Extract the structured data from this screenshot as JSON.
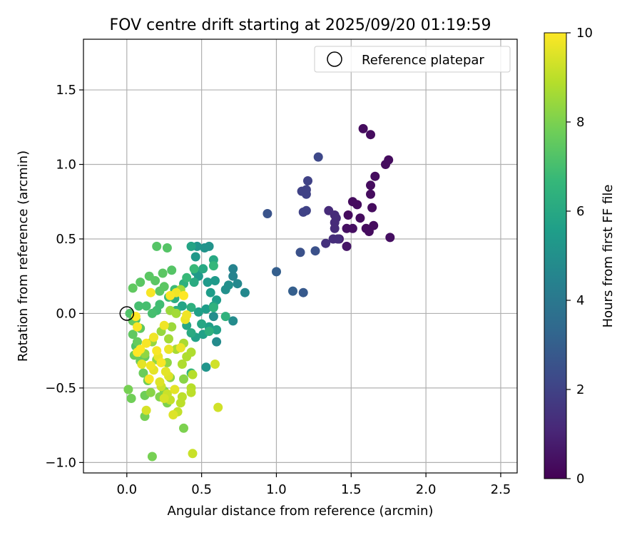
{
  "chart_data": {
    "type": "scatter",
    "title": "FOV centre drift starting at 2025/09/20 01:19:59",
    "xlabel": "Angular distance from reference (arcmin)",
    "ylabel": "Rotation from reference (arcmin)",
    "xlim": [
      -0.29,
      2.61
    ],
    "ylim": [
      -1.07,
      1.84
    ],
    "xticks": [
      0.0,
      0.5,
      1.0,
      1.5,
      2.0,
      2.5
    ],
    "xtick_labels": [
      "0.0",
      "0.5",
      "1.0",
      "1.5",
      "2.0",
      "2.5"
    ],
    "yticks": [
      -1.0,
      -0.5,
      0.0,
      0.5,
      1.0,
      1.5
    ],
    "ytick_labels": [
      "−1.0",
      "−0.5",
      "0.0",
      "0.5",
      "1.0",
      "1.5"
    ],
    "grid": true,
    "legend": {
      "location": "upper right",
      "entries": [
        "Reference platepar"
      ]
    },
    "reference_point": {
      "x": 0.0,
      "y": 0.0
    },
    "colorbar": {
      "label": "Hours from first FF file",
      "range": [
        0,
        10
      ],
      "ticks": [
        0,
        2,
        4,
        6,
        8,
        10
      ],
      "tick_labels": [
        "0",
        "2",
        "4",
        "6",
        "8",
        "10"
      ],
      "colormap": "viridis",
      "colormap_stops": [
        "#440154",
        "#482878",
        "#3e4989",
        "#31688e",
        "#26828e",
        "#1f9e89",
        "#35b779",
        "#6ece58",
        "#b5de2b",
        "#fde725"
      ]
    },
    "points": [
      [
        1.58,
        1.24,
        0.3
      ],
      [
        1.63,
        1.2,
        0.3
      ],
      [
        1.75,
        1.03,
        0.3
      ],
      [
        1.73,
        1.0,
        0.3
      ],
      [
        1.66,
        0.92,
        0.3
      ],
      [
        1.63,
        0.86,
        0.3
      ],
      [
        1.63,
        0.8,
        0.3
      ],
      [
        1.64,
        0.71,
        0.3
      ],
      [
        1.54,
        0.73,
        0.3
      ],
      [
        1.51,
        0.75,
        0.3
      ],
      [
        1.56,
        0.64,
        0.3
      ],
      [
        1.48,
        0.66,
        0.3
      ],
      [
        1.65,
        0.59,
        0.3
      ],
      [
        1.6,
        0.57,
        0.3
      ],
      [
        1.62,
        0.55,
        0.3
      ],
      [
        1.47,
        0.57,
        0.4
      ],
      [
        1.51,
        0.57,
        0.4
      ],
      [
        1.76,
        0.51,
        0.4
      ],
      [
        1.47,
        0.45,
        0.6
      ],
      [
        1.42,
        0.5,
        0.8
      ],
      [
        1.35,
        0.69,
        1.2
      ],
      [
        1.39,
        0.66,
        1.2
      ],
      [
        1.4,
        0.64,
        1.2
      ],
      [
        1.39,
        0.61,
        1.2
      ],
      [
        1.39,
        0.57,
        1.2
      ],
      [
        1.38,
        0.5,
        1.3
      ],
      [
        1.41,
        0.5,
        1.3
      ],
      [
        1.33,
        0.47,
        1.4
      ],
      [
        1.21,
        0.89,
        2.0
      ],
      [
        1.2,
        0.83,
        2.0
      ],
      [
        1.17,
        0.82,
        2.0
      ],
      [
        1.2,
        0.8,
        2.0
      ],
      [
        1.18,
        0.68,
        2.0
      ],
      [
        1.2,
        0.69,
        2.0
      ],
      [
        1.28,
        1.05,
        2.2
      ],
      [
        1.26,
        0.42,
        2.5
      ],
      [
        1.16,
        0.41,
        2.5
      ],
      [
        0.94,
        0.67,
        2.6
      ],
      [
        1.18,
        0.14,
        2.8
      ],
      [
        1.11,
        0.15,
        3.0
      ],
      [
        1.0,
        0.28,
        3.0
      ],
      [
        0.71,
        0.3,
        4.5
      ],
      [
        0.71,
        0.25,
        4.5
      ],
      [
        0.74,
        0.2,
        4.7
      ],
      [
        0.79,
        0.14,
        4.7
      ],
      [
        0.71,
        -0.05,
        4.8
      ],
      [
        0.6,
        -0.19,
        4.8
      ],
      [
        0.58,
        -0.02,
        4.9
      ],
      [
        0.66,
        0.16,
        5.0
      ],
      [
        0.68,
        0.19,
        5.0
      ],
      [
        0.55,
        0.45,
        5.1
      ],
      [
        0.52,
        0.44,
        5.1
      ],
      [
        0.53,
        -0.36,
        5.2
      ],
      [
        0.47,
        0.45,
        5.2
      ],
      [
        0.46,
        0.38,
        5.3
      ],
      [
        0.46,
        0.28,
        5.4
      ],
      [
        0.48,
        0.25,
        5.4
      ],
      [
        0.54,
        0.21,
        5.4
      ],
      [
        0.59,
        0.22,
        5.4
      ],
      [
        0.56,
        0.14,
        5.5
      ],
      [
        0.6,
        0.09,
        5.5
      ],
      [
        0.53,
        0.03,
        5.5
      ],
      [
        0.48,
        0.01,
        5.6
      ],
      [
        0.55,
        -0.09,
        5.6
      ],
      [
        0.46,
        -0.16,
        5.7
      ],
      [
        0.51,
        -0.14,
        5.7
      ],
      [
        0.6,
        -0.11,
        5.7
      ],
      [
        0.58,
        0.05,
        5.8
      ],
      [
        0.43,
        0.45,
        5.8
      ],
      [
        0.37,
        0.05,
        5.8
      ],
      [
        0.4,
        -0.08,
        5.9
      ],
      [
        0.5,
        -0.07,
        5.9
      ],
      [
        0.58,
        0.36,
        6.0
      ],
      [
        0.51,
        0.3,
        6.0
      ],
      [
        0.45,
        0.21,
        6.1
      ],
      [
        0.43,
        -0.13,
        6.1
      ],
      [
        0.33,
        0.02,
        6.2
      ],
      [
        0.32,
        0.1,
        6.2
      ],
      [
        0.38,
        0.2,
        6.3
      ],
      [
        0.43,
        0.04,
        6.3
      ],
      [
        0.55,
        -0.12,
        6.3
      ],
      [
        0.58,
        0.04,
        6.4
      ],
      [
        0.66,
        -0.02,
        6.4
      ],
      [
        0.43,
        -0.4,
        6.6
      ],
      [
        0.58,
        0.32,
        6.6
      ],
      [
        0.45,
        0.3,
        6.7
      ],
      [
        0.4,
        0.24,
        6.7
      ],
      [
        0.32,
        0.16,
        6.8
      ],
      [
        0.28,
        0.11,
        6.8
      ],
      [
        0.22,
        0.06,
        6.9
      ],
      [
        0.2,
        0.02,
        6.9
      ],
      [
        0.13,
        0.05,
        7.0
      ],
      [
        0.17,
        0.0,
        7.0
      ],
      [
        0.08,
        0.05,
        7.0
      ],
      [
        0.06,
        -0.04,
        7.1
      ],
      [
        0.02,
        0.0,
        7.2
      ],
      [
        0.06,
        -0.22,
        7.2
      ],
      [
        0.27,
        0.44,
        7.3
      ],
      [
        0.2,
        0.45,
        7.3
      ],
      [
        0.3,
        0.29,
        7.3
      ],
      [
        0.24,
        0.27,
        7.4
      ],
      [
        0.09,
        0.21,
        7.4
      ],
      [
        0.15,
        0.25,
        7.4
      ],
      [
        0.19,
        0.22,
        7.4
      ],
      [
        0.22,
        0.15,
        7.4
      ],
      [
        0.25,
        0.18,
        7.4
      ],
      [
        0.04,
        0.17,
        7.5
      ],
      [
        0.04,
        -0.14,
        7.5
      ],
      [
        0.09,
        -0.1,
        7.5
      ],
      [
        0.04,
        -0.05,
        7.6
      ],
      [
        0.07,
        -0.19,
        7.6
      ],
      [
        0.12,
        -0.29,
        7.6
      ],
      [
        0.09,
        -0.32,
        7.7
      ],
      [
        0.05,
        -0.28,
        7.7
      ],
      [
        0.11,
        -0.4,
        7.7
      ],
      [
        0.14,
        -0.45,
        7.8
      ],
      [
        0.12,
        -0.55,
        7.8
      ],
      [
        0.03,
        -0.57,
        7.8
      ],
      [
        0.01,
        -0.51,
        7.9
      ],
      [
        0.12,
        -0.69,
        7.9
      ],
      [
        0.17,
        -0.96,
        7.9
      ],
      [
        0.38,
        -0.77,
        8.0
      ],
      [
        0.27,
        -0.6,
        8.0
      ],
      [
        0.22,
        -0.56,
        8.1
      ],
      [
        0.25,
        -0.52,
        8.1
      ],
      [
        0.16,
        -0.53,
        8.2
      ],
      [
        0.29,
        -0.43,
        8.2
      ],
      [
        0.38,
        -0.44,
        8.2
      ],
      [
        0.27,
        -0.33,
        8.3
      ],
      [
        0.2,
        -0.31,
        8.3
      ],
      [
        0.12,
        -0.27,
        8.3
      ],
      [
        0.17,
        -0.19,
        8.4
      ],
      [
        0.23,
        -0.12,
        8.4
      ],
      [
        0.3,
        -0.09,
        8.5
      ],
      [
        0.29,
        0.02,
        8.5
      ],
      [
        0.33,
        0.0,
        8.6
      ],
      [
        0.36,
        0.16,
        8.6
      ],
      [
        0.28,
        -0.17,
        8.6
      ],
      [
        0.33,
        -0.24,
        8.7
      ],
      [
        0.38,
        -0.2,
        8.7
      ],
      [
        0.4,
        -0.29,
        8.8
      ],
      [
        0.43,
        -0.26,
        8.8
      ],
      [
        0.37,
        -0.34,
        8.8
      ],
      [
        0.44,
        -0.41,
        8.9
      ],
      [
        0.43,
        -0.5,
        8.9
      ],
      [
        0.43,
        -0.53,
        9.0
      ],
      [
        0.37,
        -0.56,
        9.0
      ],
      [
        0.36,
        -0.6,
        9.0
      ],
      [
        0.34,
        -0.66,
        9.1
      ],
      [
        0.29,
        -0.58,
        9.1
      ],
      [
        0.27,
        -0.54,
        9.2
      ],
      [
        0.23,
        -0.49,
        9.2
      ],
      [
        0.61,
        -0.63,
        9.3
      ],
      [
        0.59,
        -0.34,
        9.3
      ],
      [
        0.44,
        -0.94,
        9.2
      ],
      [
        0.13,
        -0.65,
        9.4
      ],
      [
        0.25,
        -0.57,
        9.4
      ],
      [
        0.31,
        -0.68,
        9.5
      ],
      [
        0.22,
        -0.46,
        9.5
      ],
      [
        0.28,
        -0.42,
        9.5
      ],
      [
        0.32,
        -0.51,
        9.6
      ],
      [
        0.26,
        -0.39,
        9.6
      ],
      [
        0.18,
        -0.38,
        9.6
      ],
      [
        0.1,
        -0.34,
        9.6
      ],
      [
        0.21,
        -0.29,
        9.7
      ],
      [
        0.28,
        -0.24,
        9.7
      ],
      [
        0.36,
        -0.23,
        9.7
      ],
      [
        0.39,
        -0.04,
        9.7
      ],
      [
        0.4,
        -0.01,
        9.8
      ],
      [
        0.33,
        0.14,
        9.8
      ],
      [
        0.25,
        -0.08,
        9.8
      ],
      [
        0.18,
        -0.16,
        9.8
      ],
      [
        0.16,
        -0.35,
        9.8
      ],
      [
        0.13,
        -0.2,
        9.9
      ],
      [
        0.2,
        -0.25,
        9.9
      ],
      [
        0.07,
        -0.09,
        9.9
      ],
      [
        0.23,
        -0.33,
        9.9
      ],
      [
        0.15,
        -0.44,
        9.9
      ],
      [
        0.38,
        0.12,
        10.0
      ],
      [
        0.29,
        0.12,
        9.9
      ],
      [
        0.16,
        0.14,
        9.9
      ],
      [
        0.07,
        -0.26,
        10.0
      ],
      [
        0.09,
        -0.24,
        10.0
      ],
      [
        0.06,
        -0.02,
        10.0
      ]
    ]
  }
}
